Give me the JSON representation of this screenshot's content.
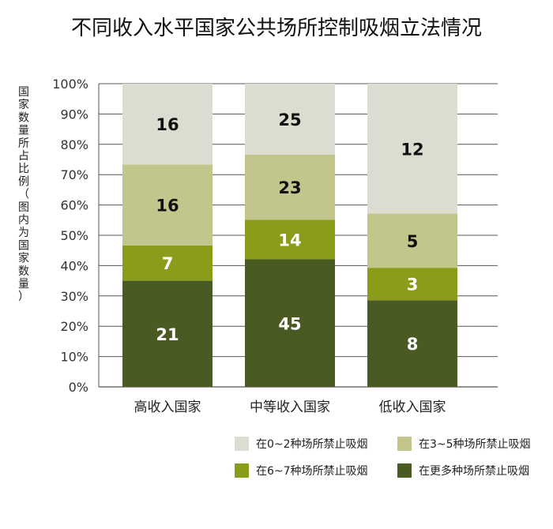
{
  "chart_data": {
    "type": "bar",
    "stacked": true,
    "normalized": true,
    "title": "不同收入水平国家公共场所控制吸烟立法情况",
    "ylabel": "国家数量所占比例（图内为国家数量）",
    "xlabel": "",
    "ylim": [
      0,
      100
    ],
    "yticks": [
      "0%",
      "10%",
      "20%",
      "30%",
      "40%",
      "50%",
      "60%",
      "70%",
      "80%",
      "90%",
      "100%"
    ],
    "categories": [
      "高收入国家",
      "中等收入国家",
      "低收入国家"
    ],
    "series": [
      {
        "name": "在更多种场所禁止吸烟",
        "values": [
          21,
          45,
          8
        ],
        "color": "#4a5a23",
        "label_color": "#ffffff"
      },
      {
        "name": "在6~7种场所禁止吸烟",
        "values": [
          7,
          14,
          3
        ],
        "color": "#8a9c19",
        "label_color": "#ffffff"
      },
      {
        "name": "在3~5种场所禁止吸烟",
        "values": [
          16,
          23,
          5
        ],
        "color": "#c3c68c",
        "label_color": "#111111"
      },
      {
        "name": "在0~2种场所禁止吸烟",
        "values": [
          16,
          25,
          12
        ],
        "color": "#dcdcd0",
        "label_color": "#111111"
      }
    ],
    "legend": {
      "placement": "bottom",
      "order": [
        "在0~2种场所禁止吸烟",
        "在3~5种场所禁止吸烟",
        "在6~7种场所禁止吸烟",
        "在更多种场所禁止吸烟"
      ]
    },
    "grid": true
  }
}
